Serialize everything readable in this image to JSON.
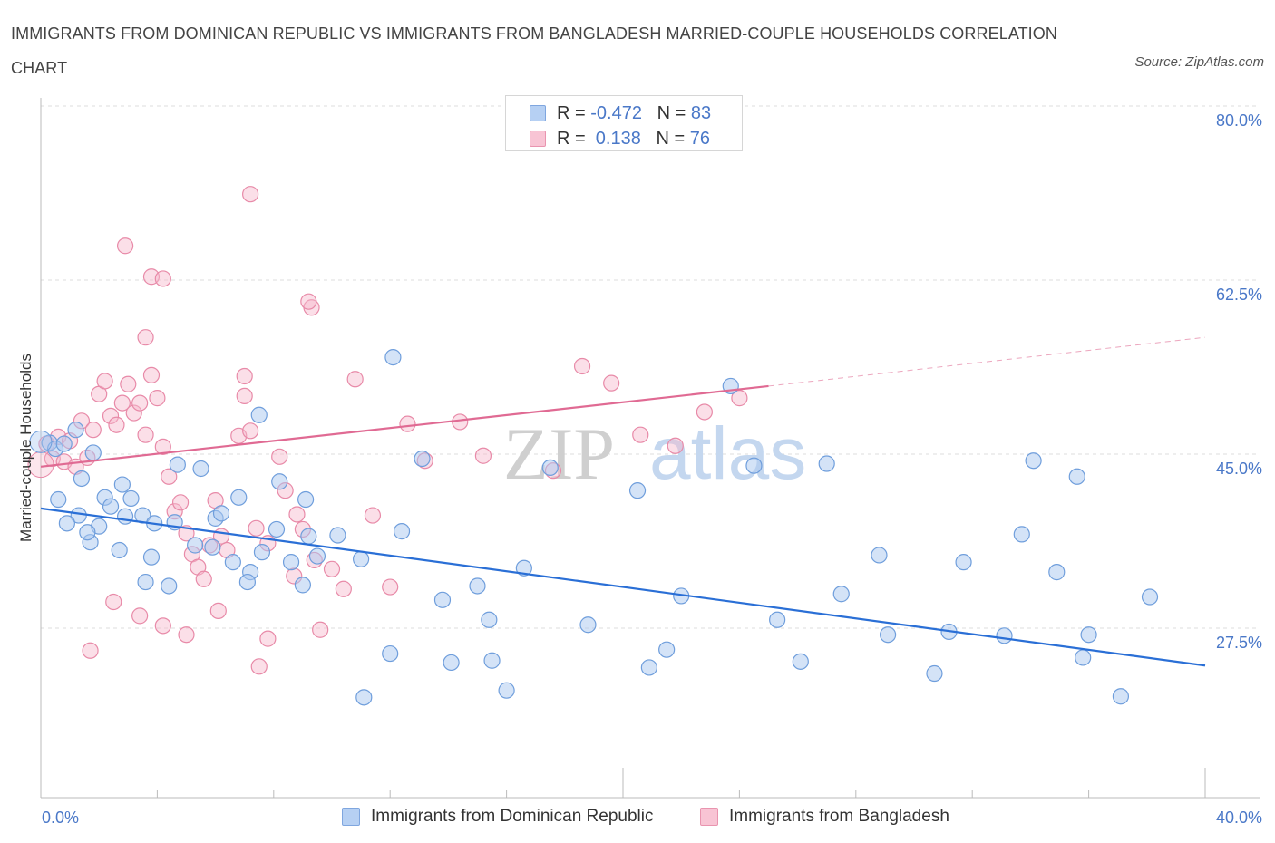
{
  "title": "IMMIGRANTS FROM DOMINICAN REPUBLIC VS IMMIGRANTS FROM BANGLADESH MARRIED-COUPLE HOUSEHOLDS CORRELATION CHART",
  "source": "Source: ZipAtlas.com",
  "watermark": {
    "zip": "ZIP",
    "atlas": "atlas"
  },
  "legend": {
    "rows": [
      {
        "r_label": "R = ",
        "r_value": "-0.472",
        "n_label": "N = ",
        "n_value": "83"
      },
      {
        "r_label": "R = ",
        "r_value": " 0.138",
        "n_label": "N = ",
        "n_value": "76"
      }
    ]
  },
  "colors": {
    "dominican_fill": "#aac8f0",
    "dominican_stroke": "#6f9edc",
    "dominican_line": "#2a6fd6",
    "bangladesh_fill": "#f6b8cc",
    "bangladesh_stroke": "#e88aa8",
    "bangladesh_line": "#e06a93",
    "axis_text": "#4a78c8",
    "grid": "#dddddd"
  },
  "chart_data": {
    "type": "scatter",
    "title": "IMMIGRANTS FROM DOMINICAN REPUBLIC VS IMMIGRANTS FROM BANGLADESH MARRIED-COUPLE HOUSEHOLDS CORRELATION CHART",
    "xlabel": "",
    "ylabel": "Married-couple Households",
    "xlim": [
      0,
      40
    ],
    "ylim": [
      10,
      80
    ],
    "x_tick_labels": [
      "0.0%",
      "40.0%"
    ],
    "y_ticks": [
      27.5,
      45.0,
      62.5,
      80.0
    ],
    "y_tick_labels": [
      "27.5%",
      "45.0%",
      "62.5%",
      "80.0%"
    ],
    "grid": true,
    "legend_position": "top-center",
    "series": [
      {
        "name": "Immigrants from Dominican Republic",
        "stats": {
          "R": -0.472,
          "N": 83
        },
        "trend": {
          "x": [
            0,
            40
          ],
          "y": [
            41.0,
            25.2
          ]
        },
        "points": [
          [
            0.3,
            47.6
          ],
          [
            0.5,
            47.0
          ],
          [
            0.8,
            47.5
          ],
          [
            1.2,
            48.9
          ],
          [
            1.4,
            44.0
          ],
          [
            1.8,
            46.6
          ],
          [
            2.2,
            42.1
          ],
          [
            2.8,
            43.4
          ],
          [
            3.1,
            42.0
          ],
          [
            3.5,
            40.3
          ],
          [
            3.9,
            39.5
          ],
          [
            4.7,
            45.4
          ],
          [
            5.5,
            45.0
          ],
          [
            6.0,
            40.0
          ],
          [
            6.8,
            42.1
          ],
          [
            7.5,
            50.4
          ],
          [
            7.2,
            34.6
          ],
          [
            8.2,
            43.7
          ],
          [
            9.1,
            41.9
          ],
          [
            10.2,
            38.3
          ],
          [
            11.0,
            35.9
          ],
          [
            12.4,
            38.7
          ],
          [
            13.1,
            46.0
          ],
          [
            12.1,
            56.2
          ],
          [
            13.8,
            31.8
          ],
          [
            15.0,
            33.2
          ],
          [
            15.4,
            29.8
          ],
          [
            16.6,
            35.0
          ],
          [
            17.5,
            45.1
          ],
          [
            18.8,
            29.3
          ],
          [
            20.5,
            42.8
          ],
          [
            22.0,
            32.2
          ],
          [
            23.7,
            53.3
          ],
          [
            24.5,
            45.3
          ],
          [
            25.3,
            29.8
          ],
          [
            27.5,
            32.4
          ],
          [
            29.1,
            28.3
          ],
          [
            30.7,
            24.4
          ],
          [
            31.7,
            35.6
          ],
          [
            33.7,
            38.4
          ],
          [
            34.1,
            45.8
          ],
          [
            35.6,
            44.2
          ],
          [
            28.8,
            36.3
          ],
          [
            27.0,
            45.5
          ],
          [
            26.1,
            25.6
          ],
          [
            21.5,
            26.8
          ],
          [
            20.9,
            25.0
          ],
          [
            16.0,
            22.7
          ],
          [
            15.5,
            25.7
          ],
          [
            14.1,
            25.5
          ],
          [
            11.1,
            22.0
          ],
          [
            12.0,
            26.4
          ],
          [
            9.2,
            38.2
          ],
          [
            9.5,
            36.2
          ],
          [
            9.0,
            33.3
          ],
          [
            8.6,
            35.6
          ],
          [
            8.1,
            38.9
          ],
          [
            7.6,
            36.6
          ],
          [
            7.1,
            33.6
          ],
          [
            6.6,
            35.6
          ],
          [
            6.2,
            40.5
          ],
          [
            5.9,
            37.1
          ],
          [
            5.3,
            37.3
          ],
          [
            4.6,
            39.6
          ],
          [
            4.4,
            33.2
          ],
          [
            3.8,
            36.1
          ],
          [
            3.6,
            33.6
          ],
          [
            2.9,
            40.2
          ],
          [
            2.4,
            41.2
          ],
          [
            2.0,
            39.2
          ],
          [
            1.7,
            37.6
          ],
          [
            1.6,
            38.6
          ],
          [
            1.3,
            40.3
          ],
          [
            0.9,
            39.5
          ],
          [
            0.6,
            41.9
          ],
          [
            36.0,
            28.3
          ],
          [
            37.1,
            22.1
          ],
          [
            38.1,
            32.1
          ],
          [
            31.2,
            28.6
          ],
          [
            34.9,
            34.6
          ],
          [
            33.1,
            28.2
          ],
          [
            35.8,
            26.0
          ],
          [
            2.7,
            36.8
          ]
        ]
      },
      {
        "name": "Immigrants from Bangladesh",
        "stats": {
          "R": 0.138,
          "N": 76
        },
        "trend": {
          "x": [
            0,
            25
          ],
          "y": [
            45.2,
            53.3
          ],
          "dashed_extension": {
            "x": [
              25,
              40
            ],
            "y": [
              53.3,
              58.2
            ]
          }
        },
        "points": [
          [
            0.2,
            47.5
          ],
          [
            0.4,
            46.0
          ],
          [
            0.6,
            48.2
          ],
          [
            0.8,
            45.7
          ],
          [
            1.0,
            47.8
          ],
          [
            1.2,
            45.2
          ],
          [
            1.4,
            49.8
          ],
          [
            1.6,
            46.1
          ],
          [
            1.8,
            48.9
          ],
          [
            2.0,
            52.5
          ],
          [
            2.2,
            53.8
          ],
          [
            2.4,
            50.3
          ],
          [
            2.6,
            49.4
          ],
          [
            2.8,
            51.6
          ],
          [
            3.0,
            53.5
          ],
          [
            3.2,
            50.6
          ],
          [
            3.4,
            51.6
          ],
          [
            3.6,
            48.4
          ],
          [
            3.8,
            54.4
          ],
          [
            4.0,
            52.1
          ],
          [
            4.2,
            47.2
          ],
          [
            4.4,
            44.2
          ],
          [
            4.6,
            40.7
          ],
          [
            4.8,
            41.6
          ],
          [
            5.0,
            38.5
          ],
          [
            5.2,
            36.4
          ],
          [
            5.4,
            35.1
          ],
          [
            5.6,
            33.9
          ],
          [
            5.8,
            37.3
          ],
          [
            6.0,
            41.8
          ],
          [
            6.2,
            38.2
          ],
          [
            6.4,
            36.8
          ],
          [
            6.8,
            48.3
          ],
          [
            7.0,
            52.3
          ],
          [
            7.2,
            48.8
          ],
          [
            7.4,
            39.0
          ],
          [
            7.8,
            37.5
          ],
          [
            8.2,
            46.2
          ],
          [
            8.4,
            42.8
          ],
          [
            8.8,
            40.4
          ],
          [
            9.0,
            38.9
          ],
          [
            9.4,
            35.8
          ],
          [
            10.0,
            34.9
          ],
          [
            10.4,
            32.9
          ],
          [
            10.8,
            54.0
          ],
          [
            11.4,
            40.3
          ],
          [
            12.0,
            33.1
          ],
          [
            12.6,
            49.5
          ],
          [
            13.2,
            45.8
          ],
          [
            14.4,
            49.7
          ],
          [
            15.2,
            46.3
          ],
          [
            17.6,
            44.8
          ],
          [
            18.6,
            55.3
          ],
          [
            19.6,
            53.6
          ],
          [
            20.6,
            48.4
          ],
          [
            21.8,
            47.3
          ],
          [
            22.8,
            50.7
          ],
          [
            24.0,
            52.1
          ],
          [
            2.5,
            31.6
          ],
          [
            1.7,
            26.7
          ],
          [
            3.4,
            30.2
          ],
          [
            4.2,
            29.2
          ],
          [
            5.0,
            28.3
          ],
          [
            6.1,
            30.7
          ],
          [
            7.8,
            27.9
          ],
          [
            7.5,
            25.1
          ],
          [
            8.7,
            34.2
          ],
          [
            9.6,
            28.8
          ],
          [
            2.9,
            67.4
          ],
          [
            3.6,
            58.2
          ],
          [
            7.2,
            72.6
          ],
          [
            3.8,
            64.3
          ],
          [
            4.2,
            64.1
          ],
          [
            7.0,
            54.3
          ],
          [
            9.3,
            61.2
          ],
          [
            9.2,
            61.8
          ]
        ]
      }
    ]
  },
  "bottom_legend": [
    {
      "label": "Immigrants from Dominican Republic"
    },
    {
      "label": "Immigrants from Bangladesh"
    }
  ]
}
